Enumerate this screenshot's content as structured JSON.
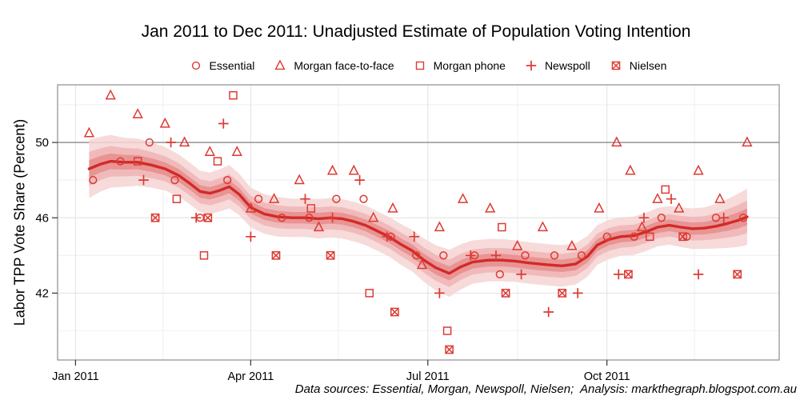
{
  "footer": {
    "text": "Data sources: Essential, Morgan, Newspoll, Nielsen;  Analysis: markthegraph.blogspot.com.au"
  },
  "colors": {
    "marker": "#dd3a33",
    "trend": "#d22a28",
    "ribbon_outer": "#f6d4d4",
    "ribbon_mid": "#f0b4b4",
    "ribbon_inner": "#e68d8d",
    "grid_major": "#e4e4e4",
    "grid_minor": "#f1f1f1",
    "panel_border": "#8c8c8c",
    "reference_line": "#8a8a8a",
    "tick": "#333333",
    "text": "#000000"
  },
  "chart_data": {
    "type": "scatter",
    "title": "Jan 2011 to Dec 2011: Unadjusted Estimate of Population Voting Intention",
    "xlabel": "",
    "ylabel": "Labor TPP Vote Share (Percent)",
    "legend_position": "top",
    "grid": true,
    "ylim": [
      38.45,
      53.06
    ],
    "xlim_days": [
      -9.2,
      361.5
    ],
    "reference_y": 50,
    "y_ticks": [
      50,
      46,
      42
    ],
    "y_minor": [
      52,
      48,
      44,
      40
    ],
    "x_ticks": [
      {
        "date": "2011-01-01",
        "label": "Jan 2011"
      },
      {
        "date": "2011-04-01",
        "label": "Apr 2011"
      },
      {
        "date": "2011-07-01",
        "label": "Jul 2011"
      },
      {
        "date": "2011-10-01",
        "label": "Oct 2011"
      }
    ],
    "x_minor": [
      "2011-02-15",
      "2011-05-16",
      "2011-08-16",
      "2011-11-15"
    ],
    "series": [
      {
        "name": "Essential",
        "marker": "circle",
        "points": [
          [
            "2011-01-10",
            48.0
          ],
          [
            "2011-01-24",
            49.0
          ],
          [
            "2011-02-08",
            50.0
          ],
          [
            "2011-02-21",
            48.0
          ],
          [
            "2011-03-06",
            46.0
          ],
          [
            "2011-03-20",
            48.0
          ],
          [
            "2011-04-05",
            47.0
          ],
          [
            "2011-04-17",
            46.0
          ],
          [
            "2011-05-01",
            46.0
          ],
          [
            "2011-05-15",
            47.0
          ],
          [
            "2011-05-29",
            47.0
          ],
          [
            "2011-06-12",
            45.0
          ],
          [
            "2011-06-25",
            44.0
          ],
          [
            "2011-07-09",
            44.0
          ],
          [
            "2011-07-25",
            44.0
          ],
          [
            "2011-08-07",
            43.0
          ],
          [
            "2011-08-20",
            44.0
          ],
          [
            "2011-09-04",
            44.0
          ],
          [
            "2011-09-18",
            44.0
          ],
          [
            "2011-10-01",
            45.0
          ],
          [
            "2011-10-15",
            45.0
          ],
          [
            "2011-10-29",
            46.0
          ],
          [
            "2011-11-11",
            45.0
          ],
          [
            "2011-11-26",
            46.0
          ],
          [
            "2011-12-10",
            46.0
          ]
        ]
      },
      {
        "name": "Morgan face-to-face",
        "marker": "triangle",
        "points": [
          [
            "2011-01-08",
            50.5
          ],
          [
            "2011-01-19",
            52.5
          ],
          [
            "2011-02-02",
            51.5
          ],
          [
            "2011-02-16",
            51.0
          ],
          [
            "2011-02-26",
            50.0
          ],
          [
            "2011-03-11",
            49.5
          ],
          [
            "2011-03-25",
            49.5
          ],
          [
            "2011-04-01",
            46.5
          ],
          [
            "2011-04-13",
            47.0
          ],
          [
            "2011-04-26",
            48.0
          ],
          [
            "2011-05-06",
            45.5
          ],
          [
            "2011-05-13",
            48.5
          ],
          [
            "2011-05-24",
            48.5
          ],
          [
            "2011-06-03",
            46.0
          ],
          [
            "2011-06-13",
            46.5
          ],
          [
            "2011-06-28",
            43.5
          ],
          [
            "2011-07-07",
            45.5
          ],
          [
            "2011-07-19",
            47.0
          ],
          [
            "2011-08-02",
            46.5
          ],
          [
            "2011-08-16",
            44.5
          ],
          [
            "2011-08-29",
            45.5
          ],
          [
            "2011-09-13",
            44.5
          ],
          [
            "2011-09-27",
            46.5
          ],
          [
            "2011-10-06",
            50.0
          ],
          [
            "2011-10-13",
            48.5
          ],
          [
            "2011-10-19",
            45.5
          ],
          [
            "2011-10-27",
            47.0
          ],
          [
            "2011-11-07",
            46.5
          ],
          [
            "2011-11-17",
            48.5
          ],
          [
            "2011-11-28",
            47.0
          ],
          [
            "2011-12-12",
            50.0
          ]
        ]
      },
      {
        "name": "Morgan phone",
        "marker": "square",
        "points": [
          [
            "2011-02-02",
            49.0
          ],
          [
            "2011-02-22",
            47.0
          ],
          [
            "2011-03-08",
            44.0
          ],
          [
            "2011-03-15",
            49.0
          ],
          [
            "2011-03-23",
            52.5
          ],
          [
            "2011-05-02",
            46.5
          ],
          [
            "2011-06-01",
            42.0
          ],
          [
            "2011-07-11",
            40.0
          ],
          [
            "2011-08-08",
            45.5
          ],
          [
            "2011-10-23",
            45.0
          ],
          [
            "2011-10-31",
            47.5
          ]
        ]
      },
      {
        "name": "Newspoll",
        "marker": "plus",
        "points": [
          [
            "2011-02-05",
            48.0
          ],
          [
            "2011-02-19",
            50.0
          ],
          [
            "2011-03-04",
            46.0
          ],
          [
            "2011-03-18",
            51.0
          ],
          [
            "2011-04-01",
            45.0
          ],
          [
            "2011-04-29",
            47.0
          ],
          [
            "2011-05-13",
            46.0
          ],
          [
            "2011-05-27",
            48.0
          ],
          [
            "2011-06-10",
            45.0
          ],
          [
            "2011-06-24",
            45.0
          ],
          [
            "2011-07-07",
            42.0
          ],
          [
            "2011-07-23",
            44.0
          ],
          [
            "2011-08-05",
            44.0
          ],
          [
            "2011-08-18",
            43.0
          ],
          [
            "2011-09-01",
            41.0
          ],
          [
            "2011-09-16",
            42.0
          ],
          [
            "2011-10-07",
            43.0
          ],
          [
            "2011-10-20",
            46.0
          ],
          [
            "2011-11-03",
            47.0
          ],
          [
            "2011-11-17",
            43.0
          ],
          [
            "2011-11-30",
            46.0
          ]
        ]
      },
      {
        "name": "Nielsen",
        "marker": "square-cross",
        "points": [
          [
            "2011-02-11",
            46.0
          ],
          [
            "2011-03-10",
            46.0
          ],
          [
            "2011-04-14",
            44.0
          ],
          [
            "2011-05-12",
            44.0
          ],
          [
            "2011-06-14",
            41.0
          ],
          [
            "2011-07-12",
            39.0
          ],
          [
            "2011-08-10",
            42.0
          ],
          [
            "2011-09-08",
            42.0
          ],
          [
            "2011-10-12",
            43.0
          ],
          [
            "2011-11-09",
            45.0
          ],
          [
            "2011-12-07",
            43.0
          ]
        ]
      }
    ],
    "trend": {
      "name": "smoothed estimate with confidence bands",
      "band_fractions": [
        1.0,
        0.58,
        0.3
      ],
      "points": [
        [
          "2011-01-08",
          48.6,
          1.55
        ],
        [
          "2011-01-14",
          48.85,
          1.45
        ],
        [
          "2011-01-19",
          49.0,
          1.4
        ],
        [
          "2011-01-26",
          48.95,
          1.3
        ],
        [
          "2011-02-02",
          48.95,
          1.25
        ],
        [
          "2011-02-09",
          48.8,
          1.2
        ],
        [
          "2011-02-16",
          48.6,
          1.15
        ],
        [
          "2011-02-23",
          48.25,
          1.12
        ],
        [
          "2011-03-01",
          47.8,
          1.1
        ],
        [
          "2011-03-06",
          47.4,
          1.1
        ],
        [
          "2011-03-11",
          47.3,
          1.1
        ],
        [
          "2011-03-16",
          47.45,
          1.12
        ],
        [
          "2011-03-21",
          47.65,
          1.15
        ],
        [
          "2011-03-26",
          47.25,
          1.1
        ],
        [
          "2011-04-01",
          46.55,
          1.05
        ],
        [
          "2011-04-08",
          46.2,
          1.05
        ],
        [
          "2011-04-15",
          46.05,
          1.05
        ],
        [
          "2011-04-22",
          46.0,
          1.02
        ],
        [
          "2011-04-29",
          46.0,
          1.02
        ],
        [
          "2011-05-06",
          45.95,
          1.05
        ],
        [
          "2011-05-12",
          46.0,
          1.05
        ],
        [
          "2011-05-18",
          45.95,
          1.05
        ],
        [
          "2011-05-24",
          45.8,
          1.05
        ],
        [
          "2011-05-30",
          45.6,
          1.05
        ],
        [
          "2011-06-05",
          45.3,
          1.05
        ],
        [
          "2011-06-11",
          45.0,
          1.05
        ],
        [
          "2011-06-17",
          44.6,
          1.08
        ],
        [
          "2011-06-23",
          44.25,
          1.1
        ],
        [
          "2011-06-29",
          43.75,
          1.15
        ],
        [
          "2011-07-05",
          43.35,
          1.2
        ],
        [
          "2011-07-12",
          43.05,
          1.25
        ],
        [
          "2011-07-18",
          43.4,
          1.2
        ],
        [
          "2011-07-24",
          43.65,
          1.15
        ],
        [
          "2011-08-01",
          43.75,
          1.12
        ],
        [
          "2011-08-08",
          43.75,
          1.12
        ],
        [
          "2011-08-15",
          43.7,
          1.1
        ],
        [
          "2011-08-22",
          43.6,
          1.1
        ],
        [
          "2011-09-01",
          43.5,
          1.1
        ],
        [
          "2011-09-08",
          43.45,
          1.1
        ],
        [
          "2011-09-15",
          43.55,
          1.1
        ],
        [
          "2011-09-21",
          43.95,
          1.08
        ],
        [
          "2011-09-26",
          44.55,
          1.05
        ],
        [
          "2011-10-02",
          44.85,
          1.05
        ],
        [
          "2011-10-08",
          45.0,
          1.02
        ],
        [
          "2011-10-15",
          45.05,
          1.02
        ],
        [
          "2011-10-21",
          45.25,
          1.02
        ],
        [
          "2011-10-27",
          45.5,
          1.02
        ],
        [
          "2011-11-02",
          45.6,
          1.02
        ],
        [
          "2011-11-08",
          45.5,
          1.05
        ],
        [
          "2011-11-14",
          45.42,
          1.08
        ],
        [
          "2011-11-20",
          45.45,
          1.1
        ],
        [
          "2011-11-26",
          45.55,
          1.18
        ],
        [
          "2011-12-02",
          45.7,
          1.3
        ],
        [
          "2011-12-07",
          45.85,
          1.4
        ],
        [
          "2011-12-12",
          46.05,
          1.5
        ]
      ]
    }
  }
}
